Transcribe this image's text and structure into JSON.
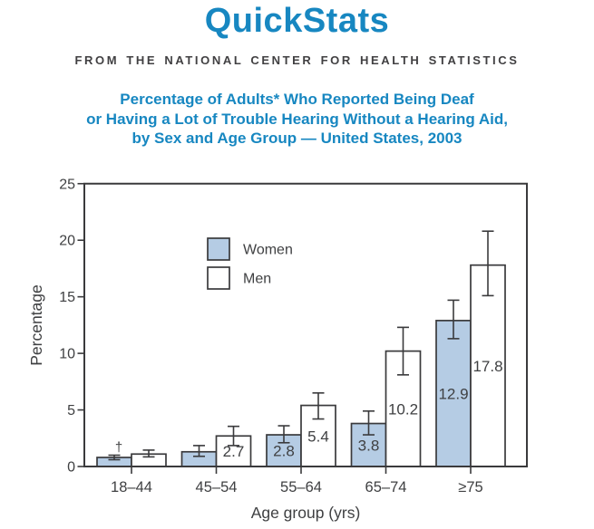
{
  "page": {
    "brand_title": "QuickStats",
    "brand_subtitle": "FROM THE NATIONAL CENTER FOR HEALTH STATISTICS",
    "headline_lines": [
      "Percentage of Adults* Who Reported Being Deaf",
      "or Having a Lot of Trouble Hearing Without a Hearing Aid,",
      "by Sex and Age Group — United States, 2003"
    ],
    "colors": {
      "brand_blue": "#1787c1",
      "headline_blue": "#1787c1",
      "subtitle_gray": "#414042",
      "text_dark": "#3f4042",
      "axis": "#3a3a3c",
      "women_fill": "#b5cce4",
      "men_fill": "#ffffff"
    }
  },
  "chart_data": {
    "type": "bar",
    "title": "",
    "xlabel": "Age group (yrs)",
    "ylabel": "Percentage",
    "ylim": [
      0,
      25
    ],
    "yticks": [
      0,
      5,
      10,
      15,
      20,
      25
    ],
    "grid": false,
    "legend_position": "upper-left-inside",
    "categories": [
      "18–44",
      "45–54",
      "55–64",
      "65–74",
      "≥75"
    ],
    "footnote_symbol": "†",
    "series": [
      {
        "name": "Women",
        "fill": "#b5cce4",
        "values": [
          0.8,
          1.3,
          2.8,
          3.8,
          12.9
        ],
        "bar_labels": [
          "",
          "",
          "2.8",
          "3.8",
          "12.9"
        ],
        "error_low": [
          0.6,
          0.9,
          2.1,
          2.8,
          11.3
        ],
        "error_high": [
          1.0,
          1.85,
          3.6,
          4.9,
          14.7
        ],
        "annotations": [
          "†",
          "",
          "",
          "",
          ""
        ]
      },
      {
        "name": "Men",
        "fill": "#ffffff",
        "values": [
          1.1,
          2.7,
          5.4,
          10.2,
          17.8
        ],
        "bar_labels": [
          "",
          "2.7",
          "5.4",
          "10.2",
          "17.8"
        ],
        "error_low": [
          0.85,
          1.85,
          4.2,
          8.1,
          15.1
        ],
        "error_high": [
          1.45,
          3.55,
          6.5,
          12.3,
          20.8
        ],
        "annotations": [
          "",
          "",
          "",
          "",
          ""
        ]
      }
    ]
  }
}
